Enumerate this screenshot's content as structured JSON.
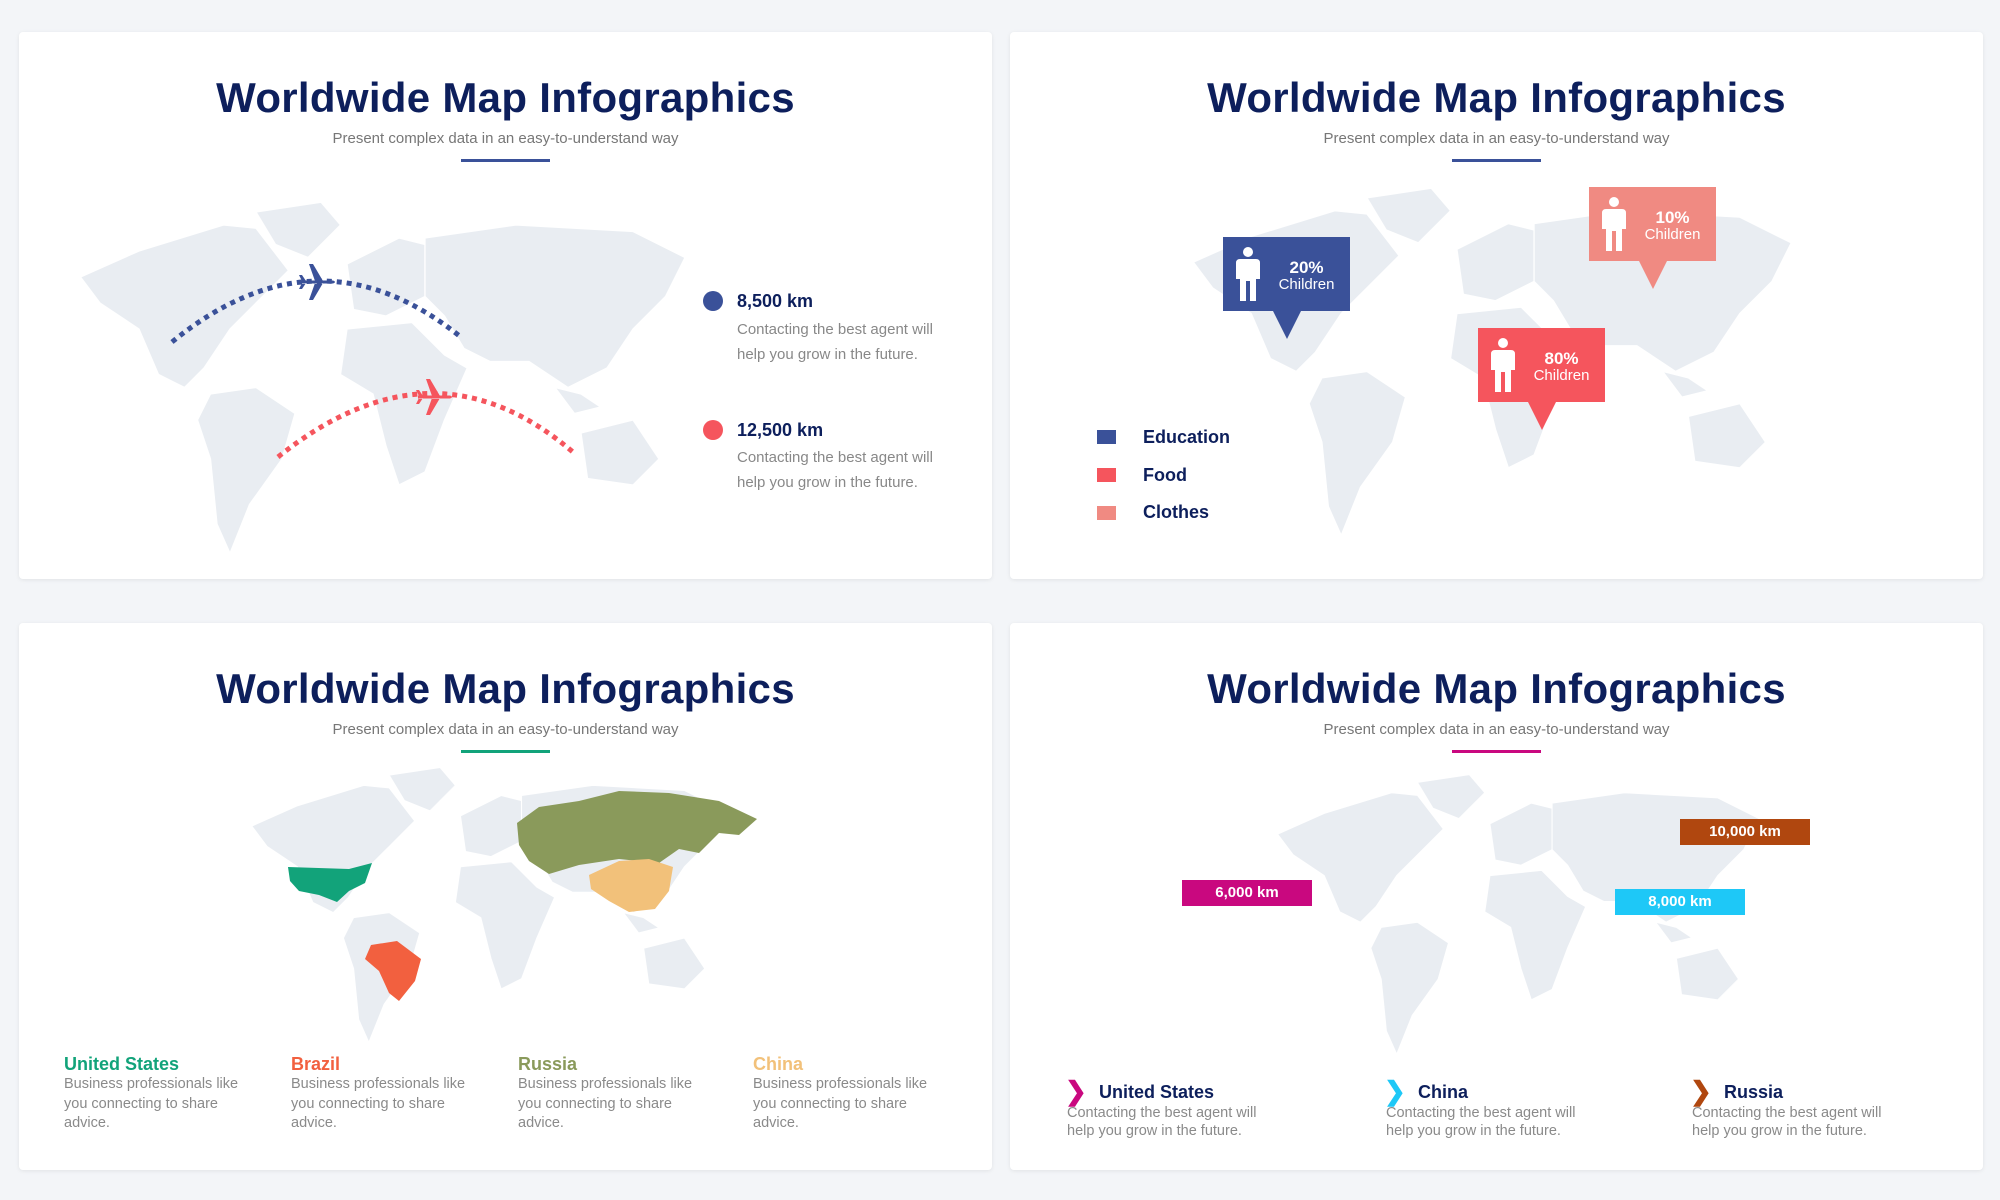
{
  "colors": {
    "navy": "#0d1f5c",
    "blue": "#3a5199",
    "red": "#f5555d",
    "salmon": "#f08a82",
    "green": "#12a37a",
    "brazil": "#f2603f",
    "russia": "#8a9a5b",
    "china": "#f2c17a",
    "magenta": "#c9087f",
    "cyan": "#1ec8f7",
    "brown": "#b0470f",
    "map": "#e9edf2"
  },
  "slides": [
    {
      "title": "Worldwide Map Infographics",
      "subtitle": "Present complex data in an easy-to-understand way",
      "routes": [
        {
          "distance": "8,500 km",
          "description": "Contacting the best agent will help you grow in the future.",
          "desc1": "Contacting the best agent will",
          "desc2": "help you grow in the future.",
          "color": "#3a5199",
          "icon": "airplane-icon"
        },
        {
          "distance": "12,500 km",
          "description": "Contacting the best agent will help you grow in the future.",
          "desc1": "Contacting the best agent will",
          "desc2": "help you grow in the future.",
          "color": "#f5555d",
          "icon": "airplane-icon"
        }
      ]
    },
    {
      "title": "Worldwide Map Infographics",
      "subtitle": "Present complex data in an easy-to-understand way",
      "callouts": [
        {
          "percent": "20%",
          "label": "Children",
          "category": "Education",
          "color": "#3a5199",
          "icon": "person-icon"
        },
        {
          "percent": "10%",
          "label": "Children",
          "category": "Clothes",
          "color": "#f08a82",
          "icon": "person-icon"
        },
        {
          "percent": "80%",
          "label": "Children",
          "category": "Food",
          "color": "#f5555d",
          "icon": "person-icon"
        }
      ],
      "legend": [
        {
          "label": "Education",
          "color": "#3a5199"
        },
        {
          "label": "Food",
          "color": "#f5555d"
        },
        {
          "label": "Clothes",
          "color": "#f08a82"
        }
      ]
    },
    {
      "title": "Worldwide Map Infographics",
      "subtitle": "Present complex data in an easy-to-understand way",
      "countries": [
        {
          "name": "United States",
          "description": "Business professionals like you connecting to share advice.",
          "l1": "Business professionals like",
          "l2": "you connecting to share",
          "l3": "advice.",
          "color": "#12a37a"
        },
        {
          "name": "Brazil",
          "description": "Business professionals like you connecting to share advice.",
          "l1": "Business professionals like",
          "l2": "you connecting to share",
          "l3": "advice.",
          "color": "#f2603f"
        },
        {
          "name": "Russia",
          "description": "Business professionals like you connecting to share advice.",
          "l1": "Business professionals like",
          "l2": "you connecting to share",
          "l3": "advice.",
          "color": "#8a9a5b"
        },
        {
          "name": "China",
          "description": "Business professionals like you connecting to share advice.",
          "l1": "Business professionals like",
          "l2": "you connecting to share",
          "l3": "advice.",
          "color": "#f2c17a"
        }
      ]
    },
    {
      "title": "Worldwide Map Infographics",
      "subtitle": "Present complex data in an easy-to-understand way",
      "tags": [
        {
          "label": "6,000 km",
          "color": "#c9087f"
        },
        {
          "label": "10,000 km",
          "color": "#b0470f"
        },
        {
          "label": "8,000 km",
          "color": "#1ec8f7"
        }
      ],
      "items": [
        {
          "name": "United States",
          "d1": "Contacting the best agent will",
          "d2": "help you grow in the future.",
          "color": "#c9087f",
          "icon": "chevron-right-icon"
        },
        {
          "name": "China",
          "d1": "Contacting the best agent will",
          "d2": "help you grow in the future.",
          "color": "#1ec8f7",
          "icon": "chevron-right-icon"
        },
        {
          "name": "Russia",
          "d1": "Contacting the best agent will",
          "d2": "help you grow in the future.",
          "color": "#b0470f",
          "icon": "chevron-right-icon"
        }
      ]
    }
  ]
}
